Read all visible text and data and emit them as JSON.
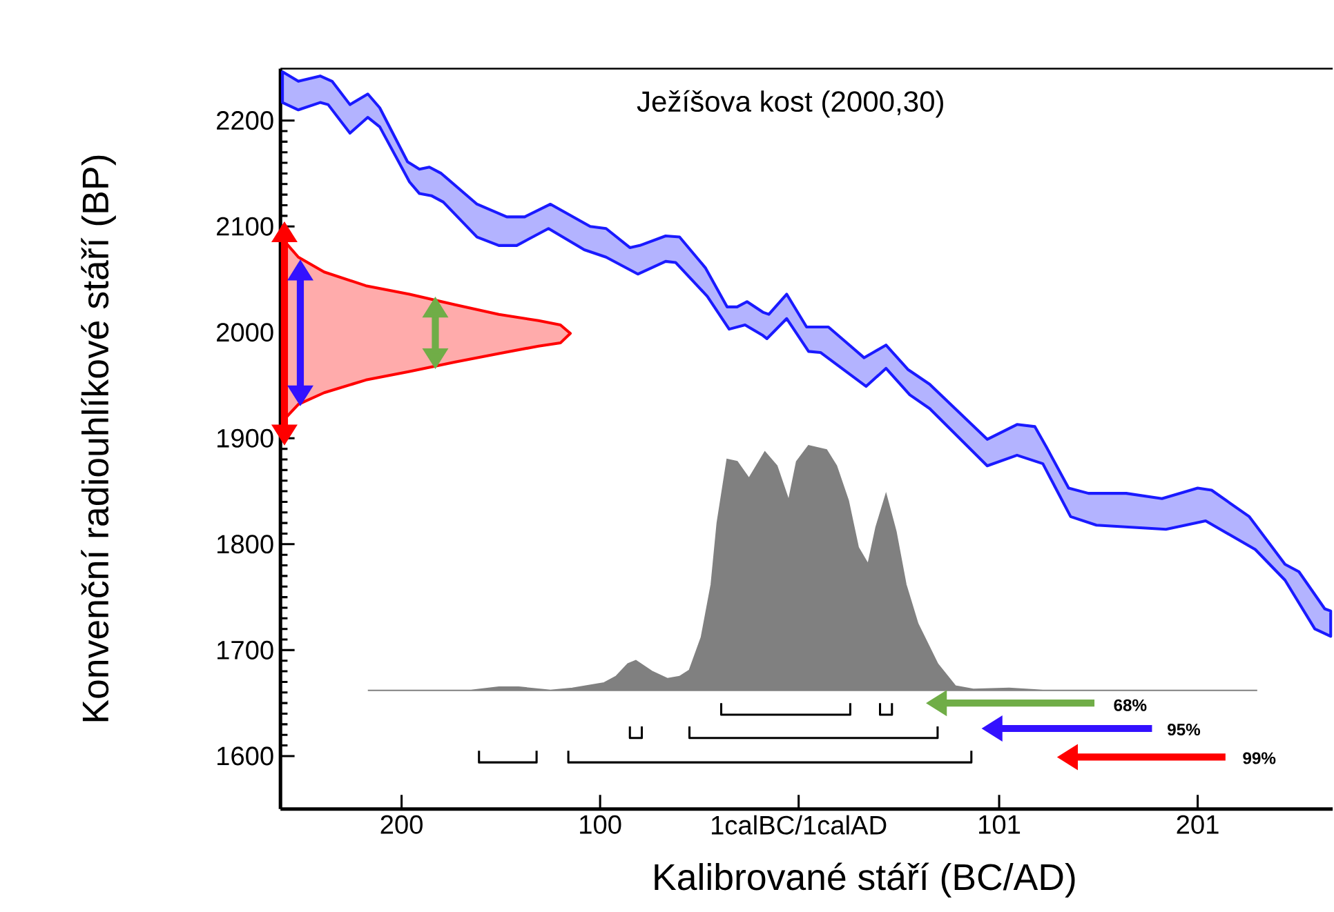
{
  "chart_data": {
    "type": "line",
    "title": "Ježíšova kost (2000,30)",
    "xlabel": "Kalibrované stáří (BC/AD)",
    "ylabel": "Konvenční radiouhlíkové stáří (BP)",
    "xlim": [
      -261,
      269
    ],
    "ylim": [
      1550,
      2249
    ],
    "xticks": [
      {
        "value": -200,
        "label": "200"
      },
      {
        "value": -100,
        "label": "100"
      },
      {
        "value": 0,
        "label": "1calBC/1calAD"
      },
      101,
      201
    ],
    "yticks": [
      1600,
      1700,
      1800,
      1900,
      2000,
      2100,
      2200
    ],
    "series": [
      {
        "type": "area",
        "color": "#1a1aff",
        "line_style": "solid",
        "x": [
          -260,
          -252,
          -241,
          -235,
          -226,
          -217,
          -211,
          -197,
          -191,
          -186,
          -180,
          -162,
          -147,
          -138,
          -125,
          -105,
          -97,
          -85,
          -80,
          -67,
          -60,
          -47,
          -36,
          -31,
          -26,
          -18,
          -15,
          -6,
          4,
          15,
          33,
          44,
          55,
          66,
          95,
          110,
          119,
          125,
          136,
          146,
          165,
          183,
          201,
          208,
          227,
          245,
          252,
          265,
          268,
          268,
          260,
          245,
          230,
          205,
          185,
          150,
          137,
          123,
          110,
          95,
          66,
          56,
          44,
          34,
          11,
          5,
          -6,
          -16,
          -18,
          -27,
          -35,
          -46,
          -62,
          -67,
          -81,
          -97,
          -108,
          -126,
          -142,
          -151,
          -162,
          -179,
          -185,
          -191,
          -196,
          -211,
          -217,
          -226,
          -237,
          -241,
          -252,
          -260
        ],
        "values": [
          2246,
          2237,
          2242,
          2237,
          2215,
          2225,
          2212,
          2161,
          2154,
          2156,
          2150,
          2121,
          2109,
          2109,
          2121,
          2100,
          2098,
          2080,
          2082,
          2091,
          2090,
          2061,
          2024,
          2024,
          2029,
          2019,
          2017,
          2036,
          2005,
          2005,
          1976,
          1988,
          1965,
          1951,
          1899,
          1913,
          1911,
          1891,
          1853,
          1848,
          1848,
          1843,
          1853,
          1851,
          1826,
          1781,
          1774,
          1739,
          1737,
          1713,
          1720,
          1766,
          1795,
          1822,
          1814,
          1818,
          1826,
          1876,
          1884,
          1874,
          1928,
          1941,
          1966,
          1949,
          1981,
          1982,
          2013,
          1994,
          1997,
          2007,
          2003,
          2034,
          2066,
          2067,
          2055,
          2071,
          2078,
          2098,
          2082,
          2082,
          2090,
          2123,
          2129,
          2131,
          2142,
          2194,
          2203,
          2188,
          2215,
          2217,
          2210,
          2217
        ]
      },
      {
        "type": "area",
        "color": "#ff0000",
        "line_style": "solid",
        "x": [
          -260,
          -259,
          -252,
          -239,
          -218,
          -196,
          -173,
          -151,
          -131,
          -120,
          -115,
          -120,
          -131,
          -151,
          -173,
          -196,
          -218,
          -239,
          -252,
          -259,
          -260
        ],
        "values": [
          2100,
          2086,
          2071,
          2057,
          2044,
          2036,
          2026,
          2017,
          2011,
          2007,
          1999,
          1990,
          1987,
          1980,
          1972,
          1963,
          1955,
          1943,
          1932,
          1918,
          1907
        ]
      },
      {
        "type": "area",
        "color": "#808080",
        "x": [
          -217,
          -165,
          -151,
          -141,
          -125,
          -114,
          -98,
          -92,
          -86,
          -82,
          -74,
          -66,
          -60,
          -55,
          -49,
          -44,
          -41,
          -36,
          -31,
          -25,
          -17,
          -11,
          -5,
          -1,
          5,
          14,
          19,
          25,
          30,
          35,
          39,
          44,
          49,
          54,
          60,
          70,
          79,
          88,
          106,
          123,
          231
        ],
        "values": [
          1662,
          1662,
          1665,
          1665,
          1662,
          1664,
          1669,
          1675,
          1687,
          1690,
          1680,
          1673,
          1675,
          1681,
          1712,
          1762,
          1820,
          1880,
          1878,
          1862,
          1887,
          1874,
          1841,
          1878,
          1893,
          1889,
          1874,
          1841,
          1797,
          1781,
          1816,
          1847,
          1812,
          1762,
          1725,
          1687,
          1666,
          1663,
          1664,
          1662,
          1662
        ]
      },
      {
        "color": "#000000",
        "x": [
          -39,
          -39,
          26,
          26,
          null,
          41,
          41,
          47,
          47
        ],
        "values": [
          1650,
          1639,
          1639,
          1650,
          null,
          1650,
          1639,
          1639,
          1650
        ]
      },
      {
        "color": "#000000",
        "x": [
          -85,
          -85,
          -79,
          -79,
          null,
          -55,
          -55,
          70,
          70
        ],
        "values": [
          1628,
          1617,
          1617,
          1628,
          null,
          1628,
          1617,
          1617,
          1628
        ]
      },
      {
        "color": "#000000",
        "x": [
          -161,
          -161,
          -132,
          -132,
          null,
          -116,
          -116,
          87,
          87
        ],
        "values": [
          1605,
          1594,
          1594,
          1605,
          null,
          1605,
          1594,
          1594,
          1605
        ]
      }
    ],
    "annotations": [
      "68%",
      "95%",
      "99%"
    ]
  }
}
